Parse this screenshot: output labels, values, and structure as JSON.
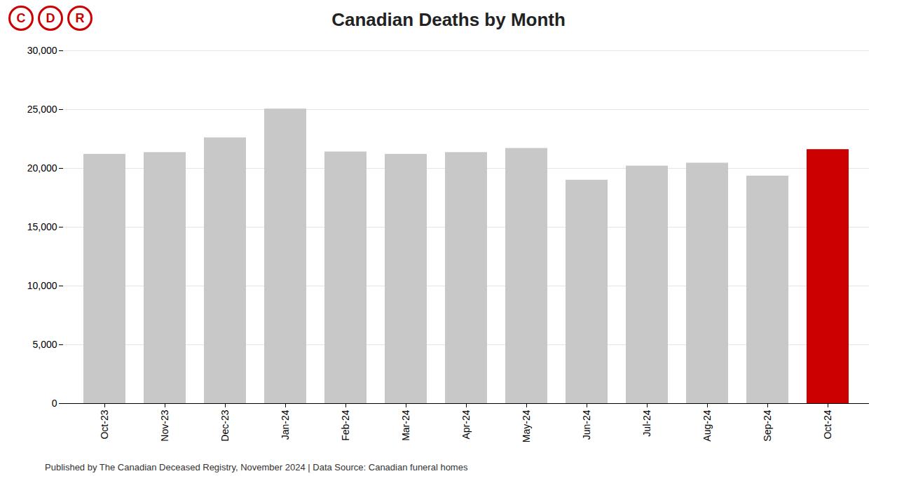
{
  "chart_data": {
    "type": "bar",
    "title": "Canadian Deaths by Month",
    "categories": [
      "Oct-23",
      "Nov-23",
      "Dec-23",
      "Jan-24",
      "Feb-24",
      "Mar-24",
      "Apr-24",
      "May-24",
      "Jun-24",
      "Jul-24",
      "Aug-24",
      "Sep-24",
      "Oct-24"
    ],
    "values": [
      21200,
      21350,
      22600,
      25050,
      21400,
      21200,
      21350,
      21700,
      19000,
      20200,
      20450,
      19350,
      21600
    ],
    "colors": [
      "#c8c8c8",
      "#c8c8c8",
      "#c8c8c8",
      "#c8c8c8",
      "#c8c8c8",
      "#c8c8c8",
      "#c8c8c8",
      "#c8c8c8",
      "#c8c8c8",
      "#c8c8c8",
      "#c8c8c8",
      "#c8c8c8",
      "#cc0000"
    ],
    "ylim": [
      0,
      30000
    ],
    "yticks": [
      0,
      {
        "value": 5000,
        "label": "5,000"
      },
      {
        "value": 10000,
        "label": "10,000"
      },
      {
        "value": 15000,
        "label": "15,000"
      },
      {
        "value": 20000,
        "label": "20,000"
      },
      {
        "value": 25000,
        "label": "25,000"
      },
      {
        "value": 30000,
        "label": "30,000"
      }
    ],
    "grid": true,
    "annotations": [
      "C",
      "D",
      "R",
      "Published by The Canadian Deceased Registry, November 2024 | Data Source: Canadian funeral homes"
    ]
  }
}
